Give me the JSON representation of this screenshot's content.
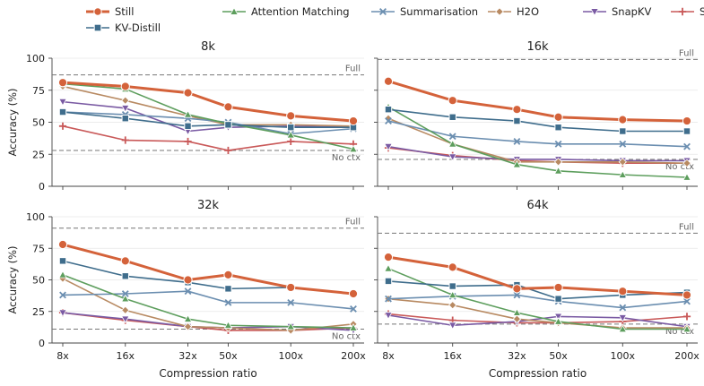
{
  "colors": {
    "Still": "#d4623a",
    "Attention Matching": "#5d9e5d",
    "Summarisation": "#6b8eb0",
    "H2O": "#b88a62",
    "SnapKV": "#7a5aa3",
    "StreamingLLM": "#c95959",
    "KV-Distill": "#3f6d8c"
  },
  "markers": {
    "Still": "circle",
    "Attention Matching": "triangle-up",
    "Summarisation": "x",
    "H2O": "diamond",
    "SnapKV": "triangle-down",
    "StreamingLLM": "plus",
    "KV-Distill": "square"
  },
  "legend": [
    "Still",
    "Attention Matching",
    "Summarisation",
    "H2O",
    "SnapKV",
    "StreamingLLM",
    "KV-Distill"
  ],
  "ref_labels": {
    "full": "Full",
    "noctx": "No ctx"
  },
  "chart_data": [
    {
      "type": "line",
      "title": "8k",
      "xlabel": "",
      "ylabel": "Accuracy (%)",
      "x": [
        "8x",
        "16x",
        "32x",
        "50x",
        "100x",
        "200x"
      ],
      "x_values": [
        8,
        16,
        32,
        50,
        100,
        200
      ],
      "x_scale": "log",
      "ylim": [
        0,
        100
      ],
      "yticks": [
        0,
        25,
        50,
        75,
        100
      ],
      "grid": "y",
      "full": 87,
      "no_ctx": 28,
      "series": [
        {
          "name": "Still",
          "values": [
            81,
            78,
            73,
            62,
            55,
            51
          ]
        },
        {
          "name": "Attention Matching",
          "values": [
            80,
            76,
            56,
            49,
            40,
            29
          ]
        },
        {
          "name": "Summarisation",
          "values": [
            58,
            56,
            53,
            50,
            41,
            45
          ]
        },
        {
          "name": "H2O",
          "values": [
            78,
            67,
            55,
            48,
            48,
            47
          ]
        },
        {
          "name": "SnapKV",
          "values": [
            66,
            61,
            43,
            46,
            47,
            46
          ]
        },
        {
          "name": "StreamingLLM",
          "values": [
            47,
            36,
            35,
            28,
            35,
            33
          ]
        },
        {
          "name": "KV-Distill",
          "values": [
            58,
            53,
            47,
            48,
            46,
            46
          ]
        }
      ]
    },
    {
      "type": "line",
      "title": "16k",
      "xlabel": "",
      "ylabel": "",
      "x": [
        "8x",
        "16x",
        "32x",
        "50x",
        "100x",
        "200x"
      ],
      "x_values": [
        8,
        16,
        32,
        50,
        100,
        200
      ],
      "x_scale": "log",
      "ylim": [
        0,
        100
      ],
      "yticks": [
        0,
        25,
        50,
        75,
        100
      ],
      "grid": "y",
      "full": 99,
      "no_ctx": 21,
      "series": [
        {
          "name": "Still",
          "values": [
            82,
            67,
            60,
            54,
            52,
            51
          ]
        },
        {
          "name": "Attention Matching",
          "values": [
            62,
            33,
            17,
            12,
            9,
            7
          ]
        },
        {
          "name": "Summarisation",
          "values": [
            51,
            39,
            35,
            33,
            33,
            31
          ]
        },
        {
          "name": "H2O",
          "values": [
            53,
            33,
            19,
            19,
            19,
            18
          ]
        },
        {
          "name": "SnapKV",
          "values": [
            31,
            23,
            21,
            21,
            20,
            20
          ]
        },
        {
          "name": "StreamingLLM",
          "values": [
            30,
            24,
            20,
            19,
            18,
            18
          ]
        },
        {
          "name": "KV-Distill",
          "values": [
            60,
            54,
            51,
            46,
            43,
            43
          ]
        }
      ]
    },
    {
      "type": "line",
      "title": "32k",
      "xlabel": "Compression ratio",
      "ylabel": "Accuracy (%)",
      "x": [
        "8x",
        "16x",
        "32x",
        "50x",
        "100x",
        "200x"
      ],
      "x_values": [
        8,
        16,
        32,
        50,
        100,
        200
      ],
      "x_scale": "log",
      "ylim": [
        0,
        100
      ],
      "yticks": [
        0,
        25,
        50,
        75,
        100
      ],
      "grid": "y",
      "full": 91,
      "no_ctx": 11,
      "series": [
        {
          "name": "Still",
          "values": [
            78,
            65,
            50,
            54,
            44,
            39
          ]
        },
        {
          "name": "Attention Matching",
          "values": [
            54,
            35,
            19,
            14,
            13,
            12
          ]
        },
        {
          "name": "Summarisation",
          "values": [
            38,
            39,
            41,
            32,
            32,
            27
          ]
        },
        {
          "name": "H2O",
          "values": [
            51,
            26,
            13,
            12,
            10,
            15
          ]
        },
        {
          "name": "SnapKV",
          "values": [
            24,
            19,
            13,
            12,
            13,
            10
          ]
        },
        {
          "name": "StreamingLLM",
          "values": [
            24,
            18,
            13,
            10,
            10,
            12
          ]
        },
        {
          "name": "KV-Distill",
          "values": [
            65,
            53,
            48,
            43,
            44,
            39
          ]
        }
      ]
    },
    {
      "type": "line",
      "title": "64k",
      "xlabel": "Compression ratio",
      "ylabel": "",
      "x": [
        "8x",
        "16x",
        "32x",
        "50x",
        "100x",
        "200x"
      ],
      "x_values": [
        8,
        16,
        32,
        50,
        100,
        200
      ],
      "x_scale": "log",
      "ylim": [
        0,
        100
      ],
      "yticks": [
        0,
        25,
        50,
        75,
        100
      ],
      "grid": "y",
      "full": 87,
      "no_ctx": 15,
      "series": [
        {
          "name": "Still",
          "values": [
            68,
            60,
            43,
            44,
            41,
            38
          ]
        },
        {
          "name": "Attention Matching",
          "values": [
            59,
            38,
            24,
            17,
            11,
            11
          ]
        },
        {
          "name": "Summarisation",
          "values": [
            35,
            37,
            38,
            33,
            28,
            33
          ]
        },
        {
          "name": "H2O",
          "values": [
            35,
            30,
            19,
            16,
            12,
            12
          ]
        },
        {
          "name": "SnapKV",
          "values": [
            22,
            14,
            17,
            21,
            20,
            13
          ]
        },
        {
          "name": "StreamingLLM",
          "values": [
            23,
            18,
            16,
            16,
            17,
            21
          ]
        },
        {
          "name": "KV-Distill",
          "values": [
            49,
            45,
            46,
            35,
            38,
            40
          ]
        }
      ]
    }
  ]
}
